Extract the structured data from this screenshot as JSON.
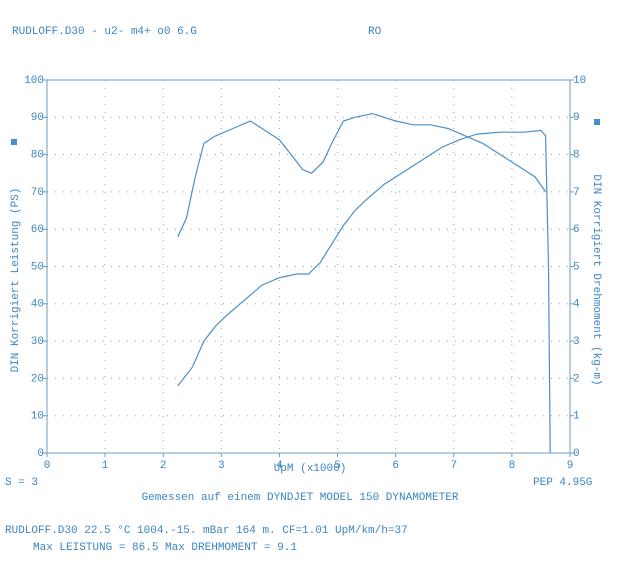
{
  "chart_data": {
    "type": "line",
    "header_left": "RUDLOFF.D30 - u2- m4+ o0    6.G",
    "header_right": "RO",
    "ylabel": "DIN Korrigiert Leistung (PS)",
    "y2label": "DIN Korrigiert Drehmoment (kg-m)",
    "xlabel": "UpM (x1000)",
    "footer_left": "S = 3",
    "footer_right": "PEP 4.95G",
    "caption": "Gemessen auf einem DYNDJET MODEL 150 DYNAMOMETER",
    "info_line": "RUDLOFF.D30      22.5 °C  1004.-15. mBar  164 m.  CF=1.01  UpM/km/h=37",
    "max_line": "Max LEISTUNG = 86.5  Max DREHMOMENT =  9.1",
    "xlim": [
      0,
      9
    ],
    "xticks": [
      0,
      1,
      2,
      3,
      4,
      5,
      6,
      7,
      8,
      9
    ],
    "ylim": [
      0,
      100
    ],
    "yticks": [
      0,
      10,
      20,
      30,
      40,
      50,
      60,
      70,
      80,
      90,
      100
    ],
    "y2lim": [
      0,
      10
    ],
    "y2ticks": [
      0,
      1,
      2,
      3,
      4,
      5,
      6,
      7,
      8,
      9,
      10
    ],
    "grid": true,
    "series": [
      {
        "color": "#4a90c8",
        "axis": "y",
        "x": [
          2.25,
          2.5,
          2.7,
          2.9,
          3.1,
          3.4,
          3.7,
          4.0,
          4.3,
          4.5,
          4.7,
          4.9,
          5.1,
          5.3,
          5.5,
          5.8,
          6.1,
          6.4,
          6.8,
          7.1,
          7.4,
          7.8,
          8.2,
          8.5,
          8.58,
          8.63,
          8.66
        ],
        "values": [
          18,
          23,
          30,
          34,
          37,
          41,
          45,
          47,
          48,
          48,
          51,
          56,
          61,
          65,
          68,
          72,
          75,
          78,
          82,
          84,
          85.5,
          86,
          86,
          86.5,
          85,
          50,
          0
        ]
      },
      {
        "color": "#4a90c8",
        "axis": "y2",
        "x": [
          2.25,
          2.4,
          2.55,
          2.7,
          2.9,
          3.2,
          3.5,
          3.8,
          4.0,
          4.2,
          4.4,
          4.55,
          4.75,
          4.9,
          5.1,
          5.3,
          5.6,
          5.8,
          6.0,
          6.3,
          6.6,
          6.9,
          7.2,
          7.5,
          7.8,
          8.1,
          8.4,
          8.58
        ],
        "values": [
          5.8,
          6.3,
          7.4,
          8.3,
          8.5,
          8.7,
          8.9,
          8.6,
          8.4,
          8.0,
          7.6,
          7.5,
          7.8,
          8.3,
          8.9,
          9.0,
          9.1,
          9.0,
          8.9,
          8.8,
          8.8,
          8.7,
          8.5,
          8.3,
          8.0,
          7.7,
          7.4,
          7.0
        ]
      }
    ]
  }
}
